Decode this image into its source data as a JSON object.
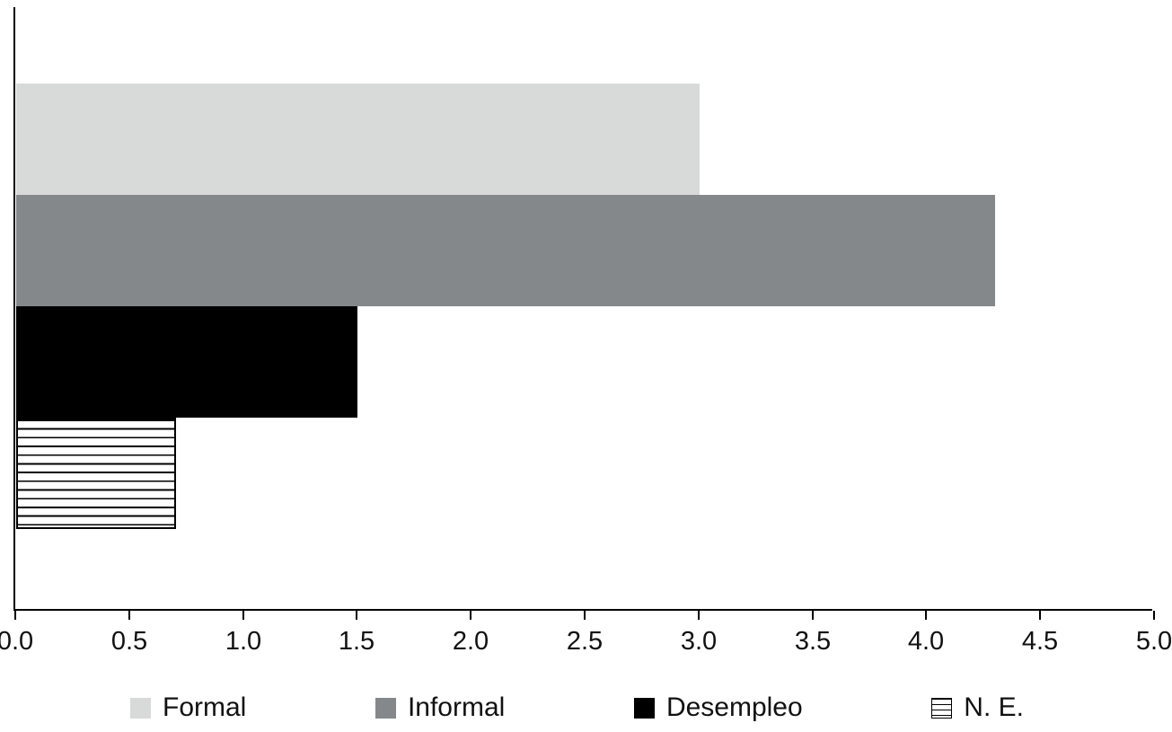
{
  "chart_data": {
    "type": "bar",
    "orientation": "horizontal",
    "title": "",
    "xlabel": "",
    "ylabel": "",
    "categories": [
      "Formal",
      "Informal",
      "Desempleo",
      "N. E."
    ],
    "values": [
      3.0,
      4.3,
      1.5,
      0.7
    ],
    "xlim": [
      0,
      5
    ],
    "xtick_step": 0.5,
    "xtick_labels": [
      "0.0",
      "0.5",
      "1.0",
      "1.5",
      "2.0",
      "2.5",
      "3.0",
      "3.5",
      "4.0",
      "4.5",
      "5.0"
    ],
    "grid": false,
    "legend_position": "bottom",
    "series_styles": [
      {
        "label": "Formal",
        "color": "#d8dada",
        "pattern": "solid"
      },
      {
        "label": "Informal",
        "color": "#84888b",
        "pattern": "solid"
      },
      {
        "label": "Desempleo",
        "color": "#000000",
        "pattern": "solid"
      },
      {
        "label": "N. E.",
        "color": "#ffffff",
        "pattern": "horizontal-stripes"
      }
    ],
    "axis_color": "#000000",
    "background_color": "#ffffff"
  }
}
